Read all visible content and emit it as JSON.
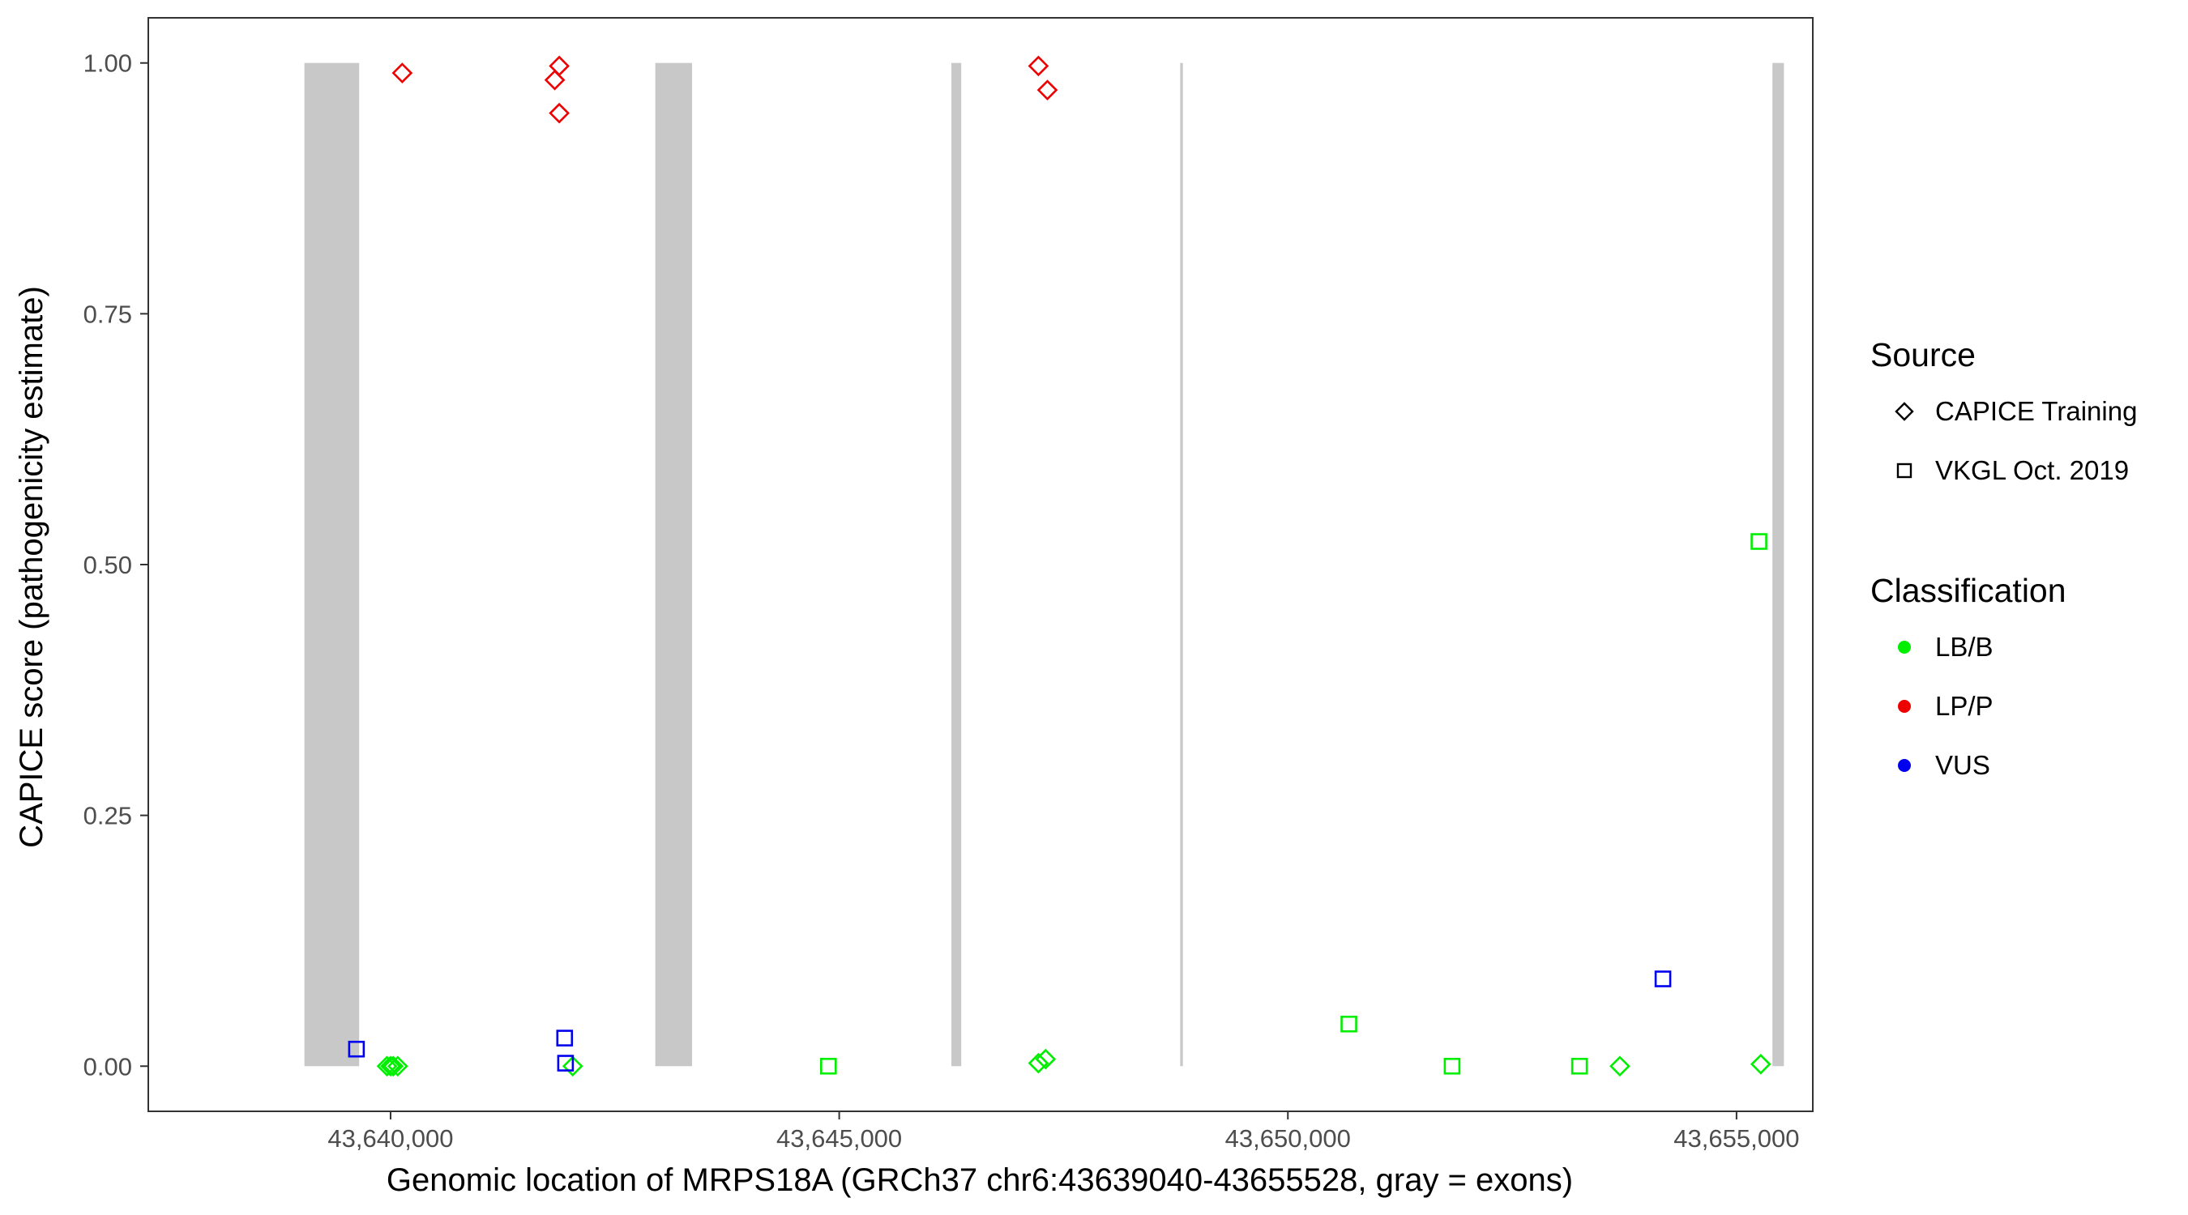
{
  "chart_data": {
    "type": "scatter",
    "title": "",
    "xlabel": "Genomic location of MRPS18A (GRCh37 chr6:43639040-43655528, gray = exons)",
    "ylabel": "CAPICE score (pathogenicity estimate)",
    "xlim": [
      43637300,
      43655850
    ],
    "ylim": [
      -0.045,
      1.045
    ],
    "x_ticks": [
      43640000,
      43645000,
      43650000,
      43655000
    ],
    "x_tick_labels": [
      "43,640,000",
      "43,645,000",
      "43,650,000",
      "43,655,000"
    ],
    "y_ticks": [
      0,
      0.25,
      0.5,
      0.75,
      1.0
    ],
    "y_tick_labels": [
      "0.00",
      "0.25",
      "0.50",
      "0.75",
      "1.00"
    ],
    "grid": false,
    "legend_position": "right",
    "exons": [
      [
        43639040,
        43639650
      ],
      [
        43642950,
        43643360
      ],
      [
        43646250,
        43646360
      ],
      [
        43648800,
        43648830
      ],
      [
        43655400,
        43655528
      ]
    ],
    "exon_color": "#c8c8c8",
    "legends": [
      {
        "title": "Source",
        "entries": [
          {
            "label": "CAPICE Training",
            "shape": "diamond"
          },
          {
            "label": "VKGL Oct. 2019",
            "shape": "square"
          }
        ]
      },
      {
        "title": "Classification",
        "entries": [
          {
            "label": "LB/B",
            "color": "#00ee00"
          },
          {
            "label": "LP/P",
            "color": "#ee0000"
          },
          {
            "label": "VUS",
            "color": "#0000ee"
          }
        ]
      }
    ],
    "class_colors": {
      "LB/B": "#00ee00",
      "LP/P": "#ee0000",
      "VUS": "#0000ee"
    },
    "series": [
      {
        "name": "CAPICE Training",
        "shape": "diamond",
        "points": [
          {
            "x": 43640130,
            "y": 0.99,
            "class": "LP/P"
          },
          {
            "x": 43641880,
            "y": 0.997,
            "class": "LP/P"
          },
          {
            "x": 43641830,
            "y": 0.983,
            "class": "LP/P"
          },
          {
            "x": 43641880,
            "y": 0.95,
            "class": "LP/P"
          },
          {
            "x": 43647220,
            "y": 0.997,
            "class": "LP/P"
          },
          {
            "x": 43647320,
            "y": 0.973,
            "class": "LP/P"
          },
          {
            "x": 43639960,
            "y": 0.0,
            "class": "LB/B"
          },
          {
            "x": 43640000,
            "y": 0.0,
            "class": "LB/B"
          },
          {
            "x": 43640030,
            "y": 0.0,
            "class": "LB/B"
          },
          {
            "x": 43640080,
            "y": 0.0,
            "class": "LB/B"
          },
          {
            "x": 43642030,
            "y": 0.0,
            "class": "LB/B"
          },
          {
            "x": 43647220,
            "y": 0.003,
            "class": "LB/B"
          },
          {
            "x": 43647300,
            "y": 0.007,
            "class": "LB/B"
          },
          {
            "x": 43653700,
            "y": 0.0,
            "class": "LB/B"
          },
          {
            "x": 43655270,
            "y": 0.002,
            "class": "LB/B"
          }
        ]
      },
      {
        "name": "VKGL Oct. 2019",
        "shape": "square",
        "points": [
          {
            "x": 43639620,
            "y": 0.017,
            "class": "VUS"
          },
          {
            "x": 43641940,
            "y": 0.028,
            "class": "VUS"
          },
          {
            "x": 43641950,
            "y": 0.003,
            "class": "VUS"
          },
          {
            "x": 43654180,
            "y": 0.087,
            "class": "VUS"
          },
          {
            "x": 43644880,
            "y": 0.0,
            "class": "LB/B"
          },
          {
            "x": 43650680,
            "y": 0.042,
            "class": "LB/B"
          },
          {
            "x": 43651830,
            "y": 0.0,
            "class": "LB/B"
          },
          {
            "x": 43653250,
            "y": 0.0,
            "class": "LB/B"
          },
          {
            "x": 43655250,
            "y": 0.523,
            "class": "LB/B"
          }
        ]
      }
    ]
  }
}
